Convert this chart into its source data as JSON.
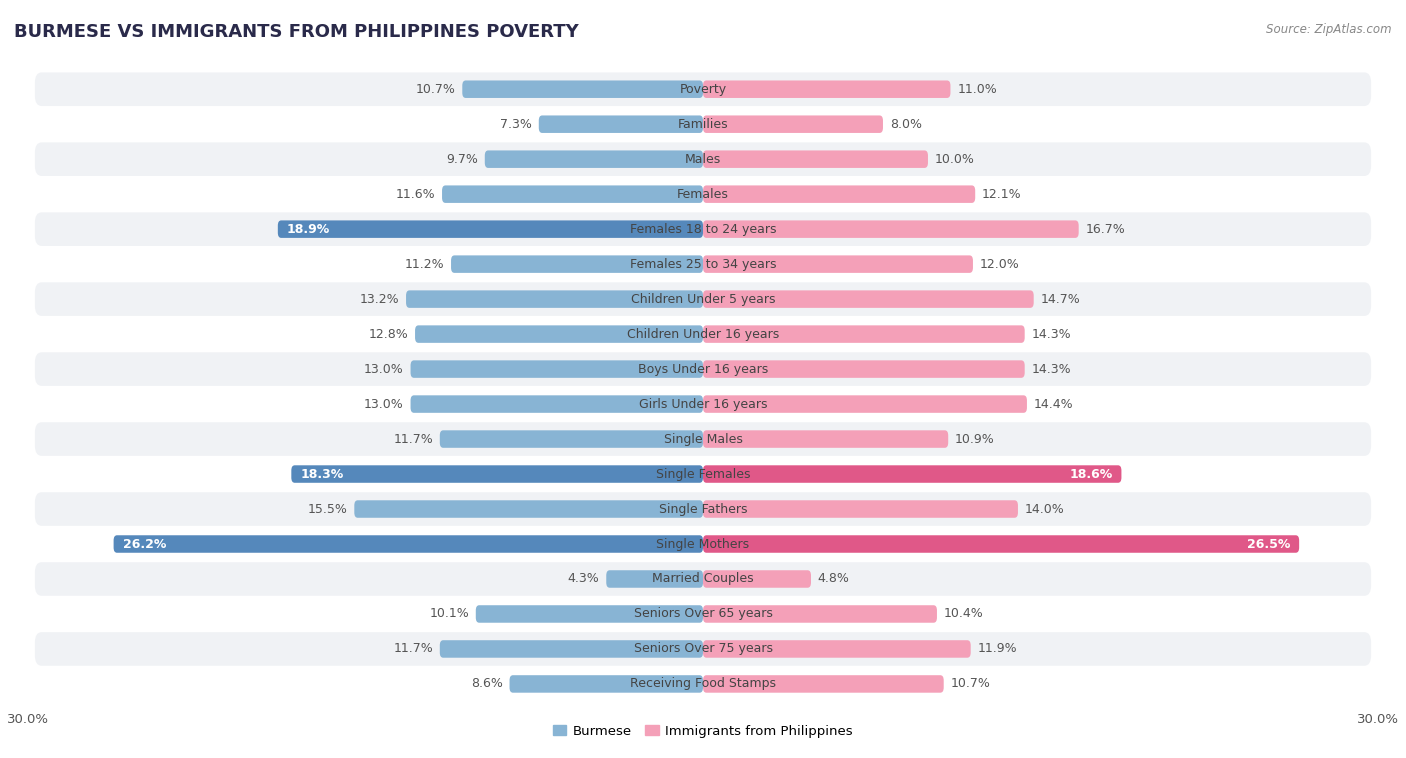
{
  "title": "BURMESE VS IMMIGRANTS FROM PHILIPPINES POVERTY",
  "source": "Source: ZipAtlas.com",
  "categories": [
    "Poverty",
    "Families",
    "Males",
    "Females",
    "Females 18 to 24 years",
    "Females 25 to 34 years",
    "Children Under 5 years",
    "Children Under 16 years",
    "Boys Under 16 years",
    "Girls Under 16 years",
    "Single Males",
    "Single Females",
    "Single Fathers",
    "Single Mothers",
    "Married Couples",
    "Seniors Over 65 years",
    "Seniors Over 75 years",
    "Receiving Food Stamps"
  ],
  "burmese": [
    10.7,
    7.3,
    9.7,
    11.6,
    18.9,
    11.2,
    13.2,
    12.8,
    13.0,
    13.0,
    11.7,
    18.3,
    15.5,
    26.2,
    4.3,
    10.1,
    11.7,
    8.6
  ],
  "philippines": [
    11.0,
    8.0,
    10.0,
    12.1,
    16.7,
    12.0,
    14.7,
    14.3,
    14.3,
    14.4,
    10.9,
    18.6,
    14.0,
    26.5,
    4.8,
    10.4,
    11.9,
    10.7
  ],
  "burmese_color": "#88b4d4",
  "burmese_highlight_color": "#5588bb",
  "philippines_color": "#f4a0b8",
  "philippines_highlight_color": "#e05888",
  "burmese_highlight_rows": [
    4,
    11,
    13
  ],
  "philippines_highlight_rows": [
    11,
    13
  ],
  "axis_limit": 30.0,
  "background_color": "#ffffff",
  "row_odd_color": "#f0f2f5",
  "row_even_color": "#ffffff",
  "bar_height": 0.5,
  "label_fontsize": 9.0,
  "cat_fontsize": 9.0,
  "title_fontsize": 13
}
